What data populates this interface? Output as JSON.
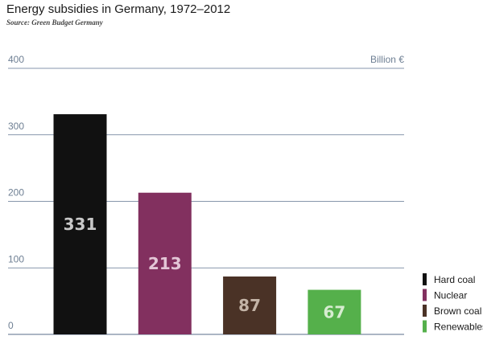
{
  "header": {
    "title": "Energy subsidies in Germany, 1972–2012",
    "source": "Source: Green Budget Germany"
  },
  "chart_data": {
    "type": "bar",
    "title": "Energy subsidies in Germany, 1972–2012",
    "unit_label": "Billion €",
    "categories": [
      "Hard coal",
      "Nuclear",
      "Brown coal",
      "Renewables"
    ],
    "values": [
      331,
      213,
      87,
      67
    ],
    "value_labels": [
      "331",
      "213",
      "87",
      "67"
    ],
    "colors": [
      "#111111",
      "#82305f",
      "#4a3226",
      "#55b04b"
    ],
    "label_colors": [
      "#c8c8c8",
      "#e3c6d6",
      "#c3b3a6",
      "#d6ecd0"
    ],
    "ylim": [
      0,
      400
    ],
    "yticks": [
      "0",
      "100",
      "200",
      "300",
      "400"
    ],
    "grid": true,
    "legend_placement": "bottom-right"
  }
}
